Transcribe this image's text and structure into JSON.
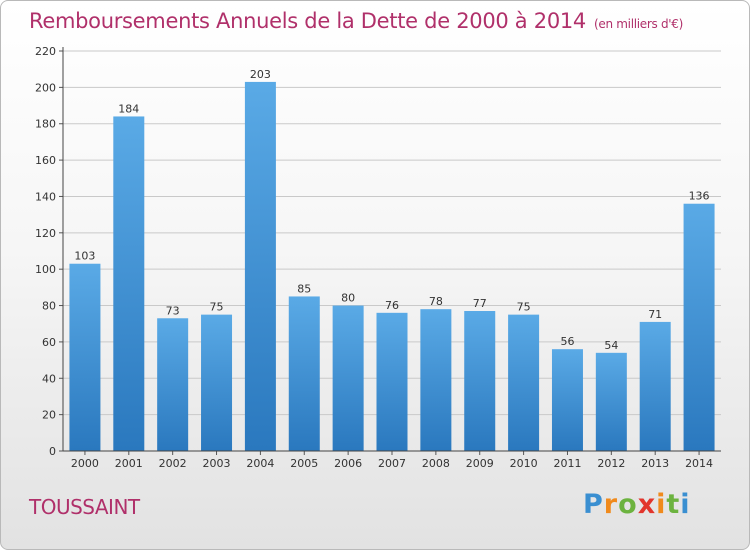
{
  "header": {
    "title": "Remboursements Annuels de la Dette de 2000 à 2014",
    "unit": "(en milliers d'€)"
  },
  "footer": {
    "commune": "TOUSSAINT",
    "logo_text": "Proxiti"
  },
  "colors": {
    "title": "#b0306a",
    "bar_top": "#5aaae6",
    "bar_bottom": "#2a78be",
    "grid": "#c9c9c9"
  },
  "chart_data": {
    "type": "bar",
    "title": "Remboursements Annuels de la Dette de 2000 à 2014",
    "xlabel": "",
    "ylabel": "",
    "categories": [
      "2000",
      "2001",
      "2002",
      "2003",
      "2004",
      "2005",
      "2006",
      "2007",
      "2008",
      "2009",
      "2010",
      "2011",
      "2012",
      "2013",
      "2014"
    ],
    "values": [
      103,
      184,
      73,
      75,
      203,
      85,
      80,
      76,
      78,
      77,
      75,
      56,
      54,
      71,
      136
    ],
    "ylim": [
      0,
      220
    ],
    "yticks": [
      0,
      20,
      40,
      60,
      80,
      100,
      120,
      140,
      160,
      180,
      200,
      220
    ],
    "grid": true,
    "data_labels": true
  }
}
